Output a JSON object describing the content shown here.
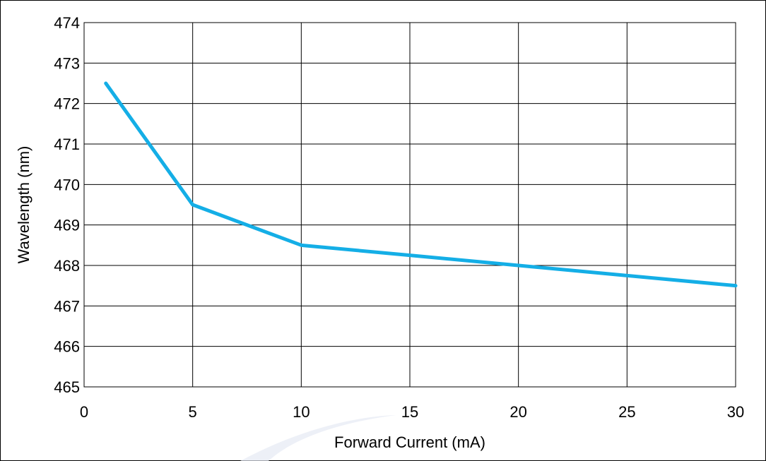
{
  "chart_data": {
    "type": "line",
    "title": "",
    "xlabel": "Forward Current (mA)",
    "ylabel": "Wavelength (nm)",
    "xlim": [
      0,
      30
    ],
    "ylim": [
      465,
      474
    ],
    "xticks": [
      0,
      5,
      10,
      15,
      20,
      25,
      30
    ],
    "yticks": [
      465,
      466,
      467,
      468,
      469,
      470,
      471,
      472,
      473,
      474
    ],
    "grid": true,
    "legend": "none",
    "series": [
      {
        "color": "#14aee6",
        "x": [
          1,
          5,
          10,
          15,
          20,
          25,
          30
        ],
        "y": [
          472.5,
          469.5,
          468.5,
          468.25,
          468.0,
          467.75,
          467.5
        ]
      }
    ]
  }
}
